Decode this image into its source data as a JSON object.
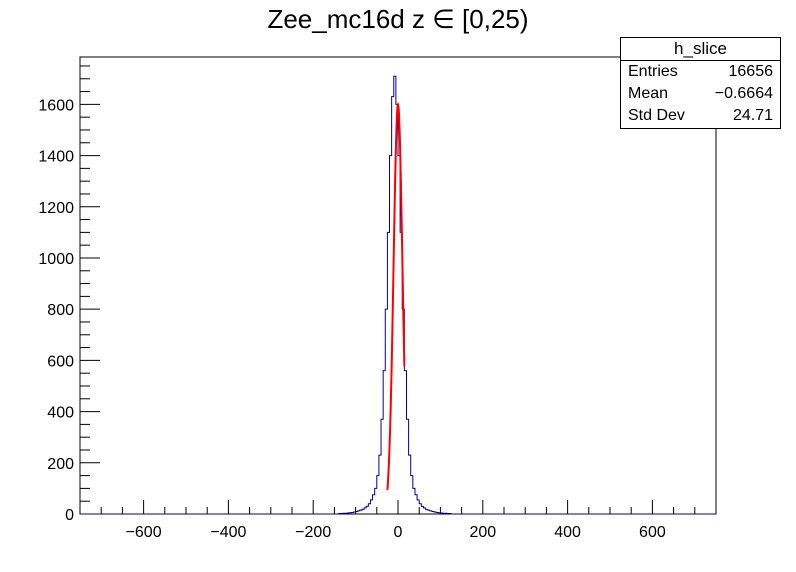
{
  "chart_data": {
    "type": "histogram",
    "title": "Zee_mc16d z  ∈ [0,25)",
    "xlabel": "",
    "ylabel": "",
    "xlim": [
      -750,
      750
    ],
    "ylim": [
      0,
      1785
    ],
    "x_ticks": [
      -600,
      -400,
      -200,
      0,
      200,
      400,
      600
    ],
    "x_tick_labels": [
      "−600",
      "−400",
      "−200",
      "0",
      "200",
      "400",
      "600"
    ],
    "y_ticks": [
      0,
      200,
      400,
      600,
      800,
      1000,
      1200,
      1400,
      1600
    ],
    "y_tick_labels": [
      "0",
      "200",
      "400",
      "600",
      "800",
      "1000",
      "1200",
      "1400",
      "1600"
    ],
    "grid": false,
    "series": [
      {
        "name": "h_slice",
        "color": "#000099",
        "bin_width": 5,
        "bin_edges_start": -140,
        "counts": [
          2,
          2,
          3,
          3,
          4,
          5,
          6,
          8,
          10,
          12,
          15,
          18,
          24,
          30,
          40,
          55,
          75,
          100,
          150,
          230,
          370,
          560,
          800,
          1100,
          1400,
          1630,
          1710,
          1600,
          1400,
          1100,
          800,
          560,
          370,
          230,
          150,
          100,
          75,
          55,
          40,
          30,
          24,
          18,
          15,
          12,
          10,
          8,
          6,
          5,
          4,
          3,
          3,
          2,
          2
        ]
      },
      {
        "name": "fit",
        "type": "gaussian",
        "color": "#ff0000",
        "amplitude": 1600,
        "mean": 0,
        "sigma": 10.5,
        "range": [
          -25,
          15
        ]
      }
    ]
  },
  "stats": {
    "header": "h_slice",
    "rows": [
      {
        "label": "Entries",
        "value": "16656"
      },
      {
        "label": "Mean",
        "value": "−0.6664"
      },
      {
        "label": "Std Dev",
        "value": "24.71"
      }
    ]
  }
}
